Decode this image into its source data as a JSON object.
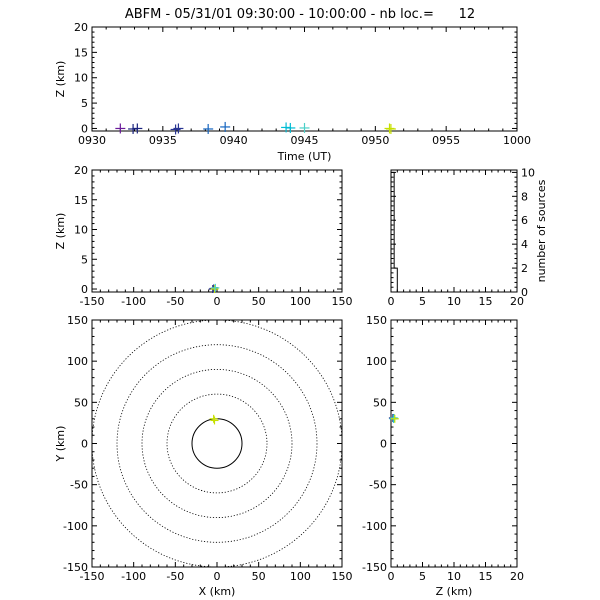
{
  "title": "ABFM - 05/31/01 09:30:00 - 10:00:00 - nb loc.=      12",
  "colors": {
    "frame": "#000000",
    "series": [
      "#6a1b9a",
      "#1a237e",
      "#283593",
      "#1565c0",
      "#00bcd4",
      "#4dd0c8",
      "#c6e000"
    ]
  },
  "chart_data": [
    {
      "id": "time-height",
      "type": "scatter",
      "xlabel": "Time (UT)",
      "ylabel": "Z (km)",
      "xticks": [
        "0930",
        "0935",
        "0940",
        "0945",
        "0950",
        "0955",
        "1000"
      ],
      "yticks": [
        "0",
        "5",
        "10",
        "15",
        "20"
      ],
      "xlim": [
        0,
        30
      ],
      "ylim": [
        -0.5,
        20
      ],
      "points": [
        {
          "x": 2.0,
          "y": 0.0,
          "color": "#6a1b9a"
        },
        {
          "x": 2.9,
          "y": -0.1,
          "color": "#1a237e"
        },
        {
          "x": 3.2,
          "y": 0.0,
          "color": "#1a237e"
        },
        {
          "x": 5.9,
          "y": -0.2,
          "color": "#283593"
        },
        {
          "x": 6.1,
          "y": 0.0,
          "color": "#283593"
        },
        {
          "x": 8.2,
          "y": -0.1,
          "color": "#1565c0"
        },
        {
          "x": 9.4,
          "y": 0.3,
          "color": "#1565c0"
        },
        {
          "x": 13.7,
          "y": 0.2,
          "color": "#00bcd4"
        },
        {
          "x": 14.0,
          "y": 0.1,
          "color": "#00bcd4"
        },
        {
          "x": 15.0,
          "y": 0.1,
          "color": "#4dd0c8"
        },
        {
          "x": 21.0,
          "y": 0.0,
          "color": "#c6e000"
        },
        {
          "x": 21.1,
          "y": -0.1,
          "color": "#c6e000"
        }
      ]
    },
    {
      "id": "x-z",
      "type": "scatter",
      "xlabel": "",
      "ylabel": "Z (km)",
      "xticks": [
        "-150",
        "-100",
        "-50",
        "0",
        "50",
        "100",
        "150"
      ],
      "yticks": [
        "0",
        "5",
        "10",
        "15",
        "20"
      ],
      "xlim": [
        -150,
        150
      ],
      "ylim": [
        -0.5,
        20
      ],
      "points": [
        {
          "x": -5,
          "y": 0.0,
          "color": "#1a237e"
        },
        {
          "x": -4,
          "y": 0.1,
          "color": "#283593"
        },
        {
          "x": -3,
          "y": 0.0,
          "color": "#c6e000"
        },
        {
          "x": -2,
          "y": 0.2,
          "color": "#4dd0c8"
        }
      ]
    },
    {
      "id": "height-histogram",
      "type": "line",
      "xlabel": "",
      "ylabel": "number of sources",
      "xticks": [
        "0",
        "5",
        "10",
        "15",
        "20"
      ],
      "yticks": [
        "0",
        "2",
        "4",
        "6",
        "8",
        "10"
      ],
      "xlim": [
        0,
        20
      ],
      "ylim": [
        0,
        10.2
      ],
      "steps": [
        {
          "z": 0.0,
          "count": 10
        },
        {
          "z": 0.5,
          "count": 2
        },
        {
          "z": 1.0,
          "count": 0
        },
        {
          "z": 20.0,
          "count": 0
        }
      ]
    },
    {
      "id": "x-y",
      "type": "scatter",
      "xlabel": "X (km)",
      "ylabel": "Y (km)",
      "xticks": [
        "-150",
        "-100",
        "-50",
        "0",
        "50",
        "100",
        "150"
      ],
      "yticks": [
        "-150",
        "-100",
        "-50",
        "0",
        "50",
        "100",
        "150"
      ],
      "xlim": [
        -150,
        150
      ],
      "ylim": [
        -150,
        150
      ],
      "range_rings_km": [
        30,
        60,
        90,
        120,
        150
      ],
      "points": [
        {
          "x": -4,
          "y": 30,
          "color": "#c6e000"
        },
        {
          "x": -3,
          "y": 28,
          "color": "#c6e000"
        }
      ]
    },
    {
      "id": "z-y",
      "type": "scatter",
      "xlabel": "Z (km)",
      "ylabel": "",
      "xticks": [
        "0",
        "5",
        "10",
        "15",
        "20"
      ],
      "yticks": [
        "-150",
        "-100",
        "-50",
        "0",
        "50",
        "100",
        "150"
      ],
      "xlim": [
        0,
        20
      ],
      "ylim": [
        -150,
        150
      ],
      "points": [
        {
          "x": 0.3,
          "y": 31,
          "color": "#1a237e"
        },
        {
          "x": 0.4,
          "y": 30,
          "color": "#00bcd4"
        },
        {
          "x": 0.5,
          "y": 31,
          "color": "#4dd0c8"
        },
        {
          "x": 0.6,
          "y": 30,
          "color": "#c6e000"
        }
      ]
    }
  ]
}
